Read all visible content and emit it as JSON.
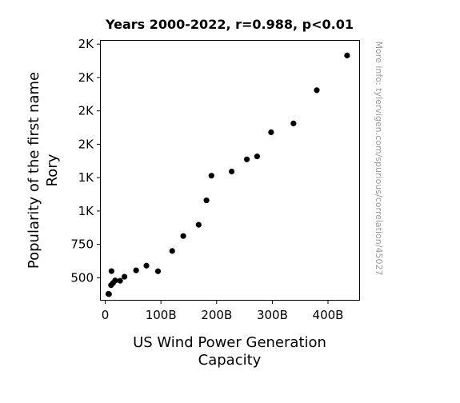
{
  "chart_data": {
    "type": "scatter",
    "title": "Years 2000-2022, r=0.988, p<0.01",
    "xlabel": [
      "US Wind Power Generation",
      "Capacity"
    ],
    "ylabel": [
      "Popularity of the first name",
      "Rory"
    ],
    "xlim": [
      -8,
      456
    ],
    "ylim": [
      335,
      2275
    ],
    "x_ticks": [
      {
        "value": 0,
        "label": "0"
      },
      {
        "value": 100,
        "label": "100B"
      },
      {
        "value": 200,
        "label": "200B"
      },
      {
        "value": 300,
        "label": "300B"
      },
      {
        "value": 400,
        "label": "400B"
      }
    ],
    "y_ticks": [
      {
        "value": 500,
        "label": "500"
      },
      {
        "value": 750,
        "label": "750"
      },
      {
        "value": 1000,
        "label": "1K"
      },
      {
        "value": 1250,
        "label": "1K"
      },
      {
        "value": 1500,
        "label": "2K"
      },
      {
        "value": 1750,
        "label": "2K"
      },
      {
        "value": 2000,
        "label": "2K"
      },
      {
        "value": 2250,
        "label": "2K"
      }
    ],
    "points": [
      {
        "x": 5.6,
        "y": 380
      },
      {
        "x": 6.7,
        "y": 378
      },
      {
        "x": 10.4,
        "y": 445
      },
      {
        "x": 11.2,
        "y": 550
      },
      {
        "x": 14.1,
        "y": 462
      },
      {
        "x": 17.8,
        "y": 480
      },
      {
        "x": 26.6,
        "y": 478
      },
      {
        "x": 34.5,
        "y": 508
      },
      {
        "x": 55.4,
        "y": 556
      },
      {
        "x": 73.9,
        "y": 591
      },
      {
        "x": 94.7,
        "y": 549
      },
      {
        "x": 120.2,
        "y": 701
      },
      {
        "x": 140.1,
        "y": 813
      },
      {
        "x": 167.7,
        "y": 897
      },
      {
        "x": 181.8,
        "y": 1080
      },
      {
        "x": 190.7,
        "y": 1265
      },
      {
        "x": 227.0,
        "y": 1296
      },
      {
        "x": 254.3,
        "y": 1387
      },
      {
        "x": 272.7,
        "y": 1409
      },
      {
        "x": 297.8,
        "y": 1590
      },
      {
        "x": 338.0,
        "y": 1656
      },
      {
        "x": 379.8,
        "y": 1905
      },
      {
        "x": 434.3,
        "y": 2165
      }
    ],
    "marker_color": "#000000",
    "grid": false,
    "legend": "none"
  },
  "watermark": "More info: tylervigen.com/spurious/correlation/45027"
}
